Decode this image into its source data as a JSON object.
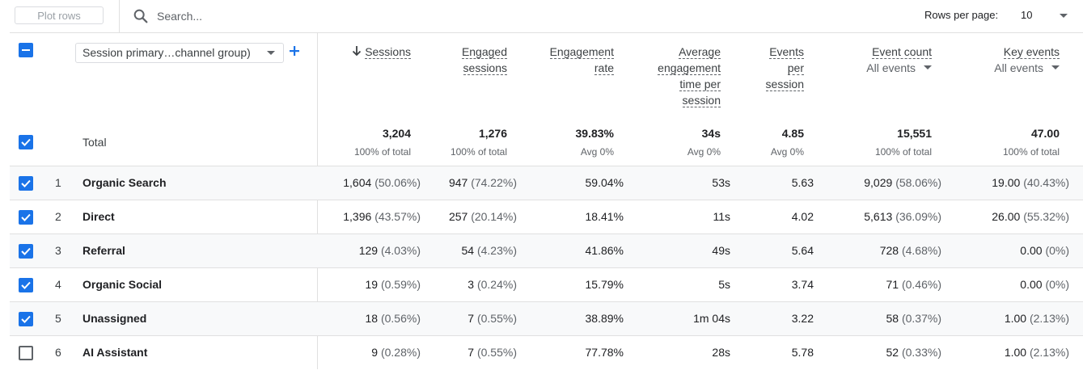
{
  "toolbar": {
    "plot_rows_label": "Plot rows",
    "search_placeholder": "Search...",
    "rows_per_page_label": "Rows per page:",
    "rows_per_page_value": "10"
  },
  "dimension": {
    "selected": "Session primary…channel group)"
  },
  "columns": [
    {
      "key": "sessions",
      "line1": "Sessions",
      "line2": "",
      "line3": "",
      "line4": "",
      "sub": "",
      "sorted": true
    },
    {
      "key": "engaged",
      "line1": "Engaged",
      "line2": "sessions",
      "line3": "",
      "line4": "",
      "sub": ""
    },
    {
      "key": "rate",
      "line1": "Engagement",
      "line2": "rate",
      "line3": "",
      "line4": "",
      "sub": ""
    },
    {
      "key": "avgtime",
      "line1": "Average",
      "line2": "engagement",
      "line3": "time per",
      "line4": "session",
      "sub": ""
    },
    {
      "key": "eps",
      "line1": "Events",
      "line2": "per",
      "line3": "session",
      "line4": "",
      "sub": ""
    },
    {
      "key": "eventcount",
      "line1": "Event count",
      "line2": "",
      "line3": "",
      "line4": "",
      "sub": "All events"
    },
    {
      "key": "keyevents",
      "line1": "Key events",
      "line2": "",
      "line3": "",
      "line4": "",
      "sub": "All events"
    }
  ],
  "total": {
    "label": "Total",
    "values": [
      "3,204",
      "1,276",
      "39.83%",
      "34s",
      "4.85",
      "15,551",
      "47.00"
    ],
    "subs": [
      "100% of total",
      "100% of total",
      "Avg 0%",
      "Avg 0%",
      "Avg 0%",
      "100% of total",
      "100% of total"
    ]
  },
  "rows": [
    {
      "num": "1",
      "channel": "Organic Search",
      "checked": true,
      "cells": [
        [
          "1,604",
          "(50.06%)"
        ],
        [
          "947",
          "(74.22%)"
        ],
        [
          "59.04%",
          ""
        ],
        [
          "53s",
          ""
        ],
        [
          "5.63",
          ""
        ],
        [
          "9,029",
          "(58.06%)"
        ],
        [
          "19.00",
          "(40.43%)"
        ]
      ]
    },
    {
      "num": "2",
      "channel": "Direct",
      "checked": true,
      "cells": [
        [
          "1,396",
          "(43.57%)"
        ],
        [
          "257",
          "(20.14%)"
        ],
        [
          "18.41%",
          ""
        ],
        [
          "11s",
          ""
        ],
        [
          "4.02",
          ""
        ],
        [
          "5,613",
          "(36.09%)"
        ],
        [
          "26.00",
          "(55.32%)"
        ]
      ]
    },
    {
      "num": "3",
      "channel": "Referral",
      "checked": true,
      "cells": [
        [
          "129",
          "(4.03%)"
        ],
        [
          "54",
          "(4.23%)"
        ],
        [
          "41.86%",
          ""
        ],
        [
          "49s",
          ""
        ],
        [
          "5.64",
          ""
        ],
        [
          "728",
          "(4.68%)"
        ],
        [
          "0.00",
          "(0%)"
        ]
      ]
    },
    {
      "num": "4",
      "channel": "Organic Social",
      "checked": true,
      "cells": [
        [
          "19",
          "(0.59%)"
        ],
        [
          "3",
          "(0.24%)"
        ],
        [
          "15.79%",
          ""
        ],
        [
          "5s",
          ""
        ],
        [
          "3.74",
          ""
        ],
        [
          "71",
          "(0.46%)"
        ],
        [
          "0.00",
          "(0%)"
        ]
      ]
    },
    {
      "num": "5",
      "channel": "Unassigned",
      "checked": true,
      "cells": [
        [
          "18",
          "(0.56%)"
        ],
        [
          "7",
          "(0.55%)"
        ],
        [
          "38.89%",
          ""
        ],
        [
          "1m 04s",
          ""
        ],
        [
          "3.22",
          ""
        ],
        [
          "58",
          "(0.37%)"
        ],
        [
          "1.00",
          "(2.13%)"
        ]
      ]
    },
    {
      "num": "6",
      "channel": "AI Assistant",
      "checked": false,
      "cells": [
        [
          "9",
          "(0.28%)"
        ],
        [
          "7",
          "(0.55%)"
        ],
        [
          "77.78%",
          ""
        ],
        [
          "28s",
          ""
        ],
        [
          "5.78",
          ""
        ],
        [
          "52",
          "(0.33%)"
        ],
        [
          "1.00",
          "(2.13%)"
        ]
      ]
    }
  ],
  "colors": {
    "accent": "#1a73e8",
    "shaded_row": "#f8f9fa",
    "border": "#e0e0e0"
  }
}
